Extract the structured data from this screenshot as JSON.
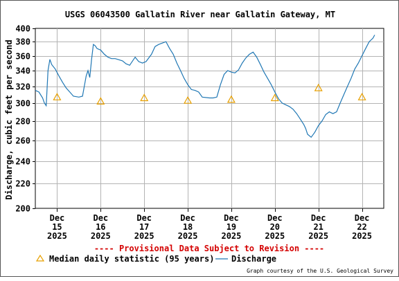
{
  "chart_data": {
    "type": "line",
    "title": "USGS 06043500 Gallatin River near Gallatin Gateway, MT",
    "ylabel": "Discharge, cubic feet per second",
    "xlabel": "",
    "ylim": [
      200,
      400
    ],
    "y_scale": "log",
    "y_ticks": [
      "400",
      "380",
      "360",
      "340",
      "320",
      "300",
      "280",
      "260",
      "240",
      "220",
      "200"
    ],
    "y_tick_values": [
      400,
      380,
      360,
      340,
      320,
      300,
      280,
      260,
      240,
      220,
      200
    ],
    "x_ticks": [
      {
        "day": 15,
        "line1": "Dec",
        "line2": "15",
        "line3": "2025"
      },
      {
        "day": 16,
        "line1": "Dec",
        "line2": "16",
        "line3": "2025"
      },
      {
        "day": 17,
        "line1": "Dec",
        "line2": "17",
        "line3": "2025"
      },
      {
        "day": 18,
        "line1": "Dec",
        "line2": "18",
        "line3": "2025"
      },
      {
        "day": 19,
        "line1": "Dec",
        "line2": "19",
        "line3": "2025"
      },
      {
        "day": 20,
        "line1": "Dec",
        "line2": "20",
        "line3": "2025"
      },
      {
        "day": 21,
        "line1": "Dec",
        "line2": "21",
        "line3": "2025"
      },
      {
        "day": 22,
        "line1": "Dec",
        "line2": "22",
        "line3": "2025"
      }
    ],
    "xlim": [
      "2025-12-14T12:00",
      "2025-12-22T12:00"
    ],
    "grid": true,
    "series": [
      {
        "name": "Discharge",
        "color": "#1f77b4",
        "x": [
          "2025-12-14T12:00",
          "2025-12-14T14:00",
          "2025-12-14T16:00",
          "2025-12-14T17:00",
          "2025-12-14T18:00",
          "2025-12-14T19:00",
          "2025-12-14T20:00",
          "2025-12-14T21:00",
          "2025-12-14T23:00",
          "2025-12-15T01:00",
          "2025-12-15T03:00",
          "2025-12-15T05:00",
          "2025-12-15T07:00",
          "2025-12-15T09:00",
          "2025-12-15T12:00",
          "2025-12-15T14:00",
          "2025-12-15T15:00",
          "2025-12-15T16:00",
          "2025-12-15T17:00",
          "2025-12-15T18:00",
          "2025-12-15T19:00",
          "2025-12-15T20:00",
          "2025-12-15T21:00",
          "2025-12-15T22:00",
          "2025-12-16T00:00",
          "2025-12-16T02:00",
          "2025-12-16T04:00",
          "2025-12-16T06:00",
          "2025-12-16T08:00",
          "2025-12-16T12:00",
          "2025-12-16T14:00",
          "2025-12-16T16:00",
          "2025-12-16T19:00",
          "2025-12-16T21:00",
          "2025-12-16T23:00",
          "2025-12-17T01:00",
          "2025-12-17T04:00",
          "2025-12-17T06:00",
          "2025-12-17T08:00",
          "2025-12-17T10:00",
          "2025-12-17T12:00",
          "2025-12-17T14:00",
          "2025-12-17T16:00",
          "2025-12-17T18:00",
          "2025-12-17T20:00",
          "2025-12-17T22:00",
          "2025-12-18T00:00",
          "2025-12-18T02:00",
          "2025-12-18T04:00",
          "2025-12-18T06:00",
          "2025-12-18T08:00",
          "2025-12-18T12:00",
          "2025-12-18T14:00",
          "2025-12-18T16:00",
          "2025-12-18T18:00",
          "2025-12-18T20:00",
          "2025-12-18T22:00",
          "2025-12-19T00:00",
          "2025-12-19T02:00",
          "2025-12-19T04:00",
          "2025-12-19T06:00",
          "2025-12-19T08:00",
          "2025-12-19T10:00",
          "2025-12-19T12:00",
          "2025-12-19T14:00",
          "2025-12-19T16:00",
          "2025-12-19T18:00",
          "2025-12-19T20:00",
          "2025-12-19T22:00",
          "2025-12-20T00:00",
          "2025-12-20T02:00",
          "2025-12-20T04:00",
          "2025-12-20T06:00",
          "2025-12-20T08:00",
          "2025-12-20T10:00",
          "2025-12-20T12:00",
          "2025-12-20T14:00",
          "2025-12-20T16:00",
          "2025-12-20T17:00",
          "2025-12-20T18:00",
          "2025-12-20T20:00",
          "2025-12-20T22:00",
          "2025-12-21T00:00",
          "2025-12-21T02:00",
          "2025-12-21T04:00",
          "2025-12-21T06:00",
          "2025-12-21T08:00",
          "2025-12-21T10:00",
          "2025-12-21T12:00",
          "2025-12-21T14:00",
          "2025-12-21T16:00",
          "2025-12-21T18:00",
          "2025-12-21T20:00",
          "2025-12-21T22:00",
          "2025-12-22T00:00",
          "2025-12-22T02:00",
          "2025-12-22T04:00",
          "2025-12-22T06:00",
          "2025-12-22T07:00"
        ],
        "y": [
          315,
          313,
          306,
          300,
          297,
          340,
          355,
          348,
          342,
          333,
          325,
          318,
          313,
          308,
          307,
          308,
          320,
          333,
          340,
          331,
          355,
          376,
          374,
          370,
          368,
          362,
          358,
          356,
          356,
          353,
          349,
          347,
          358,
          352,
          350,
          352,
          362,
          373,
          376,
          378,
          380,
          370,
          362,
          350,
          340,
          330,
          322,
          316,
          315,
          313,
          307,
          306,
          306,
          307,
          322,
          335,
          340,
          338,
          337,
          341,
          350,
          357,
          362,
          365,
          358,
          348,
          338,
          330,
          322,
          313,
          305,
          300,
          298,
          296,
          293,
          288,
          282,
          276,
          272,
          266,
          263,
          268,
          275,
          280,
          287,
          290,
          288,
          290,
          300,
          310,
          320,
          330,
          342,
          350,
          360,
          370,
          380,
          385,
          390
        ]
      },
      {
        "name": "Median daily statistic (95 years)",
        "color": "#e8a000",
        "marker": "triangle",
        "x": [
          "2025-12-15",
          "2025-12-16",
          "2025-12-17",
          "2025-12-18",
          "2025-12-19",
          "2025-12-20",
          "2025-12-21",
          "2025-12-22"
        ],
        "y": [
          307,
          302,
          306,
          303,
          304,
          306,
          318,
          307
        ]
      }
    ]
  },
  "notice": "---- Provisional Data Subject to Revision ----",
  "credit": "Graph courtesy of the U.S. Geological Survey",
  "colors": {
    "discharge": "#1f77b4",
    "median": "#e8a000",
    "notice": "#d40000",
    "grid": "#b3b3b3"
  }
}
